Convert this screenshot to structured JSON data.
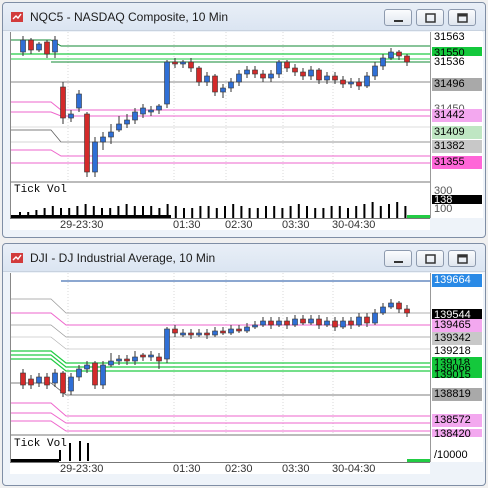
{
  "windows": [
    {
      "title": "NQC5 - NASDAQ Composite, 10 Min",
      "indicator_label": "Tick Vol",
      "time_labels": [
        "29-23:30",
        "01:30",
        "02:30",
        "03:30",
        "30-04:30"
      ],
      "price_tags": [
        {
          "text": "31563",
          "bg": "#ffffff",
          "fg": "#000000"
        },
        {
          "text": "31550",
          "bg": "#14c83c",
          "fg": "#000000"
        },
        {
          "text": "31536",
          "bg": "#ffffff",
          "fg": "#000000"
        },
        {
          "text": "31496",
          "bg": "#a9a9a9",
          "fg": "#000000"
        },
        {
          "text": "31450",
          "bg": "#ffffff",
          "fg": "#555555"
        },
        {
          "text": "31442",
          "bg": "#f3a8ef",
          "fg": "#000000"
        },
        {
          "text": "31409",
          "bg": "#bfe6c3",
          "fg": "#000000"
        },
        {
          "text": "31382",
          "bg": "#c8c8c8",
          "fg": "#000000"
        },
        {
          "text": "31355",
          "bg": "#ff66d8",
          "fg": "#000000"
        }
      ],
      "indicator_tags": [
        {
          "text": "300",
          "bg": "#ffffff",
          "fg": "#555555"
        },
        {
          "text": "138",
          "bg": "#000000",
          "fg": "#ffffff"
        },
        {
          "text": "100",
          "bg": "#ffffff",
          "fg": "#555555"
        }
      ],
      "colors": {
        "up": "#2f6fd6",
        "down": "#d42a2a",
        "green_line": "#22cc44",
        "pink_line": "#ee66cc",
        "dark_green": "#118833",
        "black_line": "#000000"
      }
    },
    {
      "title": "DJI - DJ Industrial Average, 10 Min",
      "indicator_label": "Tick Vol",
      "time_labels": [
        "29-23:30",
        "01:30",
        "02:30",
        "03:30",
        "30-04:30"
      ],
      "price_tags": [
        {
          "text": "139664",
          "bg": "#2a8ae6",
          "fg": "#ffffff"
        },
        {
          "text": "139544",
          "bg": "#000000",
          "fg": "#ffffff"
        },
        {
          "text": "139465",
          "bg": "#f3a8ef",
          "fg": "#000000"
        },
        {
          "text": "139342",
          "bg": "#c8c8c8",
          "fg": "#000000"
        },
        {
          "text": "139218",
          "bg": "#ffffff",
          "fg": "#000000"
        },
        {
          "text": "139118",
          "bg": "#14c83c",
          "fg": "#000000"
        },
        {
          "text": "139066",
          "bg": "#14c83c",
          "fg": "#000000"
        },
        {
          "text": "139015",
          "bg": "#14c83c",
          "fg": "#000000"
        },
        {
          "text": "138819",
          "bg": "#a9a9a9",
          "fg": "#000000"
        },
        {
          "text": "138572",
          "bg": "#f3a8ef",
          "fg": "#000000"
        },
        {
          "text": "138420",
          "bg": "#f3a8ef",
          "fg": "#000000"
        }
      ],
      "indicator_tags": [
        {
          "text": "/10000",
          "bg": "#ffffff",
          "fg": "#000000"
        }
      ],
      "colors": {
        "up": "#2f6fd6",
        "down": "#d42a2a",
        "green_line": "#22cc44",
        "pink_line": "#ee66cc",
        "dark_green": "#118833",
        "black_line": "#000000"
      }
    }
  ]
}
